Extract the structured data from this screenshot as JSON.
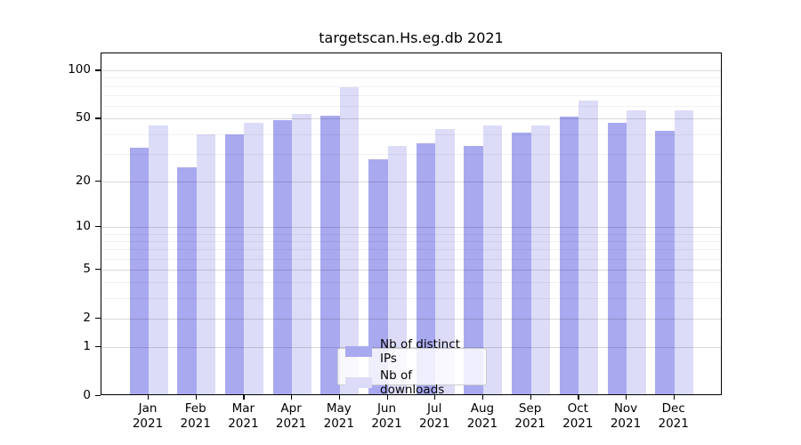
{
  "figure_title": "targetscan.Hs.eg.db 2021",
  "chart_data": {
    "type": "bar",
    "title": "targetscan.Hs.eg.db 2021",
    "categories": [
      "Jan 2021",
      "Feb 2021",
      "Mar 2021",
      "Apr 2021",
      "May 2021",
      "Jun 2021",
      "Jul 2021",
      "Aug 2021",
      "Sep 2021",
      "Oct 2021",
      "Nov 2021",
      "Dec 2021"
    ],
    "series": [
      {
        "name": "Nb of distinct IPs",
        "color": "#a9a9f0",
        "values": [
          32,
          24,
          39,
          48,
          51,
          27,
          34,
          33,
          40,
          50,
          46,
          41
        ]
      },
      {
        "name": "Nb of downloads",
        "color": "#dcdcf8",
        "values": [
          44,
          39,
          46,
          52,
          77,
          33,
          42,
          44,
          44,
          63,
          55,
          55
        ]
      }
    ],
    "xlabel": "",
    "ylabel": "",
    "yscale": "log1p",
    "ylim": [
      0,
      128
    ],
    "y_major_ticks": [
      0,
      1,
      2,
      5,
      10,
      20,
      50,
      100
    ],
    "y_minor_ticks": [
      3,
      4,
      6,
      7,
      8,
      9,
      30,
      40,
      60,
      70,
      80,
      90
    ],
    "grid": "horizontal",
    "legend": {
      "position": "lower-center-inside",
      "labels": [
        "Nb of distinct IPs",
        "Nb of downloads"
      ]
    }
  },
  "colors": {
    "bar_distinct_ips": "#a9a9f0",
    "bar_downloads": "#dcdcf8",
    "grid_major": "rgba(0,0,0,0.15)",
    "grid_minor": "rgba(0,0,0,0.06)",
    "axis": "#000000",
    "text": "#000000",
    "legend_border": "#cccccc",
    "legend_background": "rgba(255,255,255,0.8)"
  }
}
